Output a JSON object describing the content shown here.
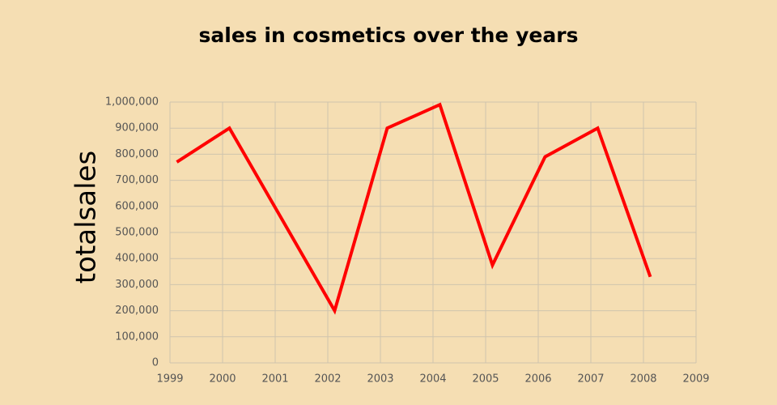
{
  "chart_data": {
    "type": "line",
    "title": "sales in cosmetics over the years",
    "y_label": "totalsales",
    "x": [
      1999.13,
      2000.13,
      2001.13,
      2002.13,
      2003.13,
      2004.13,
      2005.13,
      2006.13,
      2007.13,
      2008.13
    ],
    "series": [
      {
        "name": "totalsales",
        "color": "#ff0000",
        "values": [
          770000,
          900000,
          550000,
          200000,
          900000,
          990000,
          375000,
          790000,
          900000,
          330000
        ]
      }
    ],
    "xlim": [
      1999,
      2009
    ],
    "xticks": [
      1999,
      2000,
      2001,
      2002,
      2003,
      2004,
      2005,
      2006,
      2007,
      2008,
      2009
    ],
    "ylim": [
      0,
      1000000
    ],
    "yticks": [
      0,
      {
        "value": 100000,
        "label": "100,000"
      },
      {
        "value": 200000,
        "label": "200,000"
      },
      {
        "value": 300000,
        "label": "300,000"
      },
      {
        "value": 400000,
        "label": "400,000"
      },
      {
        "value": 500000,
        "label": "500,000"
      },
      {
        "value": 600000,
        "label": "600,000"
      },
      {
        "value": 700000,
        "label": "700,000"
      },
      {
        "value": 800000,
        "label": "800,000"
      },
      {
        "value": 900000,
        "label": "900,000"
      },
      {
        "value": 1000000,
        "label": "1,000,000"
      }
    ],
    "grid": true
  }
}
